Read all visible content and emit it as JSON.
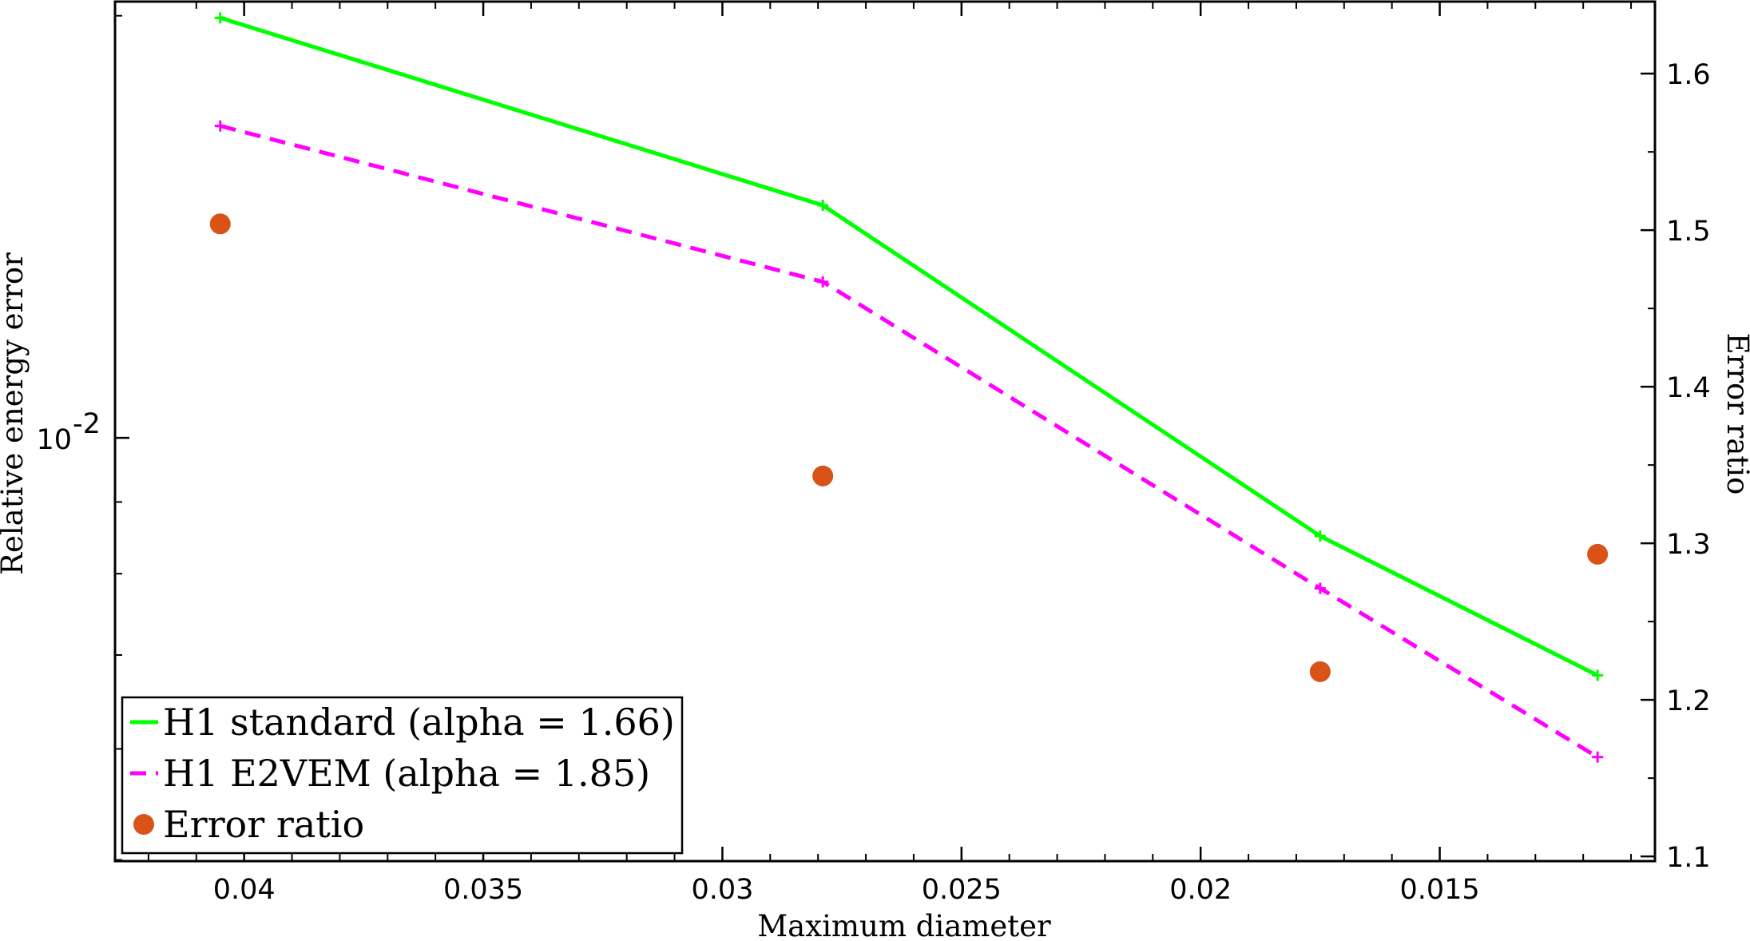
{
  "chart_data": {
    "type": "line",
    "xlabel": "Maximum diameter",
    "ylabel": "Relative energy error",
    "y2label": "Error ratio",
    "x_reversed": true,
    "xlim": [
      0.0427,
      0.0105
    ],
    "x_ticks": [
      0.04,
      0.035,
      0.03,
      0.025,
      0.02,
      0.015
    ],
    "x_tick_labels": [
      "0.04",
      "0.035",
      "0.03",
      "0.025",
      "0.02",
      "0.015"
    ],
    "y_scale": "log",
    "ylim": [
      0.00499,
      0.02047
    ],
    "y_ticks": [
      0.01
    ],
    "y_tick_labels": [
      {
        "base": "10",
        "exp": "-2"
      }
    ],
    "y2lim": [
      1.097,
      1.646
    ],
    "y2_ticks": [
      1.1,
      1.2,
      1.3,
      1.4,
      1.5,
      1.6
    ],
    "y2_tick_labels": [
      "1.1",
      "1.2",
      "1.3",
      "1.4",
      "1.5",
      "1.6"
    ],
    "series": [
      {
        "name": "H1 standard (alpha = 1.66)",
        "axis": "left",
        "style": "solid",
        "marker": "plus",
        "color": "#00ff00",
        "x": [
          0.0405,
          0.0279,
          0.0175,
          0.0117
        ],
        "y": [
          0.01993,
          0.01465,
          0.00851,
          0.00677
        ]
      },
      {
        "name": "H1 E2VEM (alpha = 1.85)",
        "axis": "left",
        "style": "dashed",
        "marker": "plus",
        "color": "#ff00ff",
        "x": [
          0.0405,
          0.0279,
          0.0175,
          0.0117
        ],
        "y": [
          0.01669,
          0.01292,
          0.00781,
          0.00592
        ]
      },
      {
        "name": "Error ratio",
        "axis": "right",
        "style": "none",
        "marker": "circle",
        "color": "#d95319",
        "x": [
          0.0405,
          0.0279,
          0.0175,
          0.0117
        ],
        "y": [
          1.504,
          1.343,
          1.218,
          1.293
        ]
      }
    ],
    "legend_position": "bottom-left",
    "grid": false
  }
}
